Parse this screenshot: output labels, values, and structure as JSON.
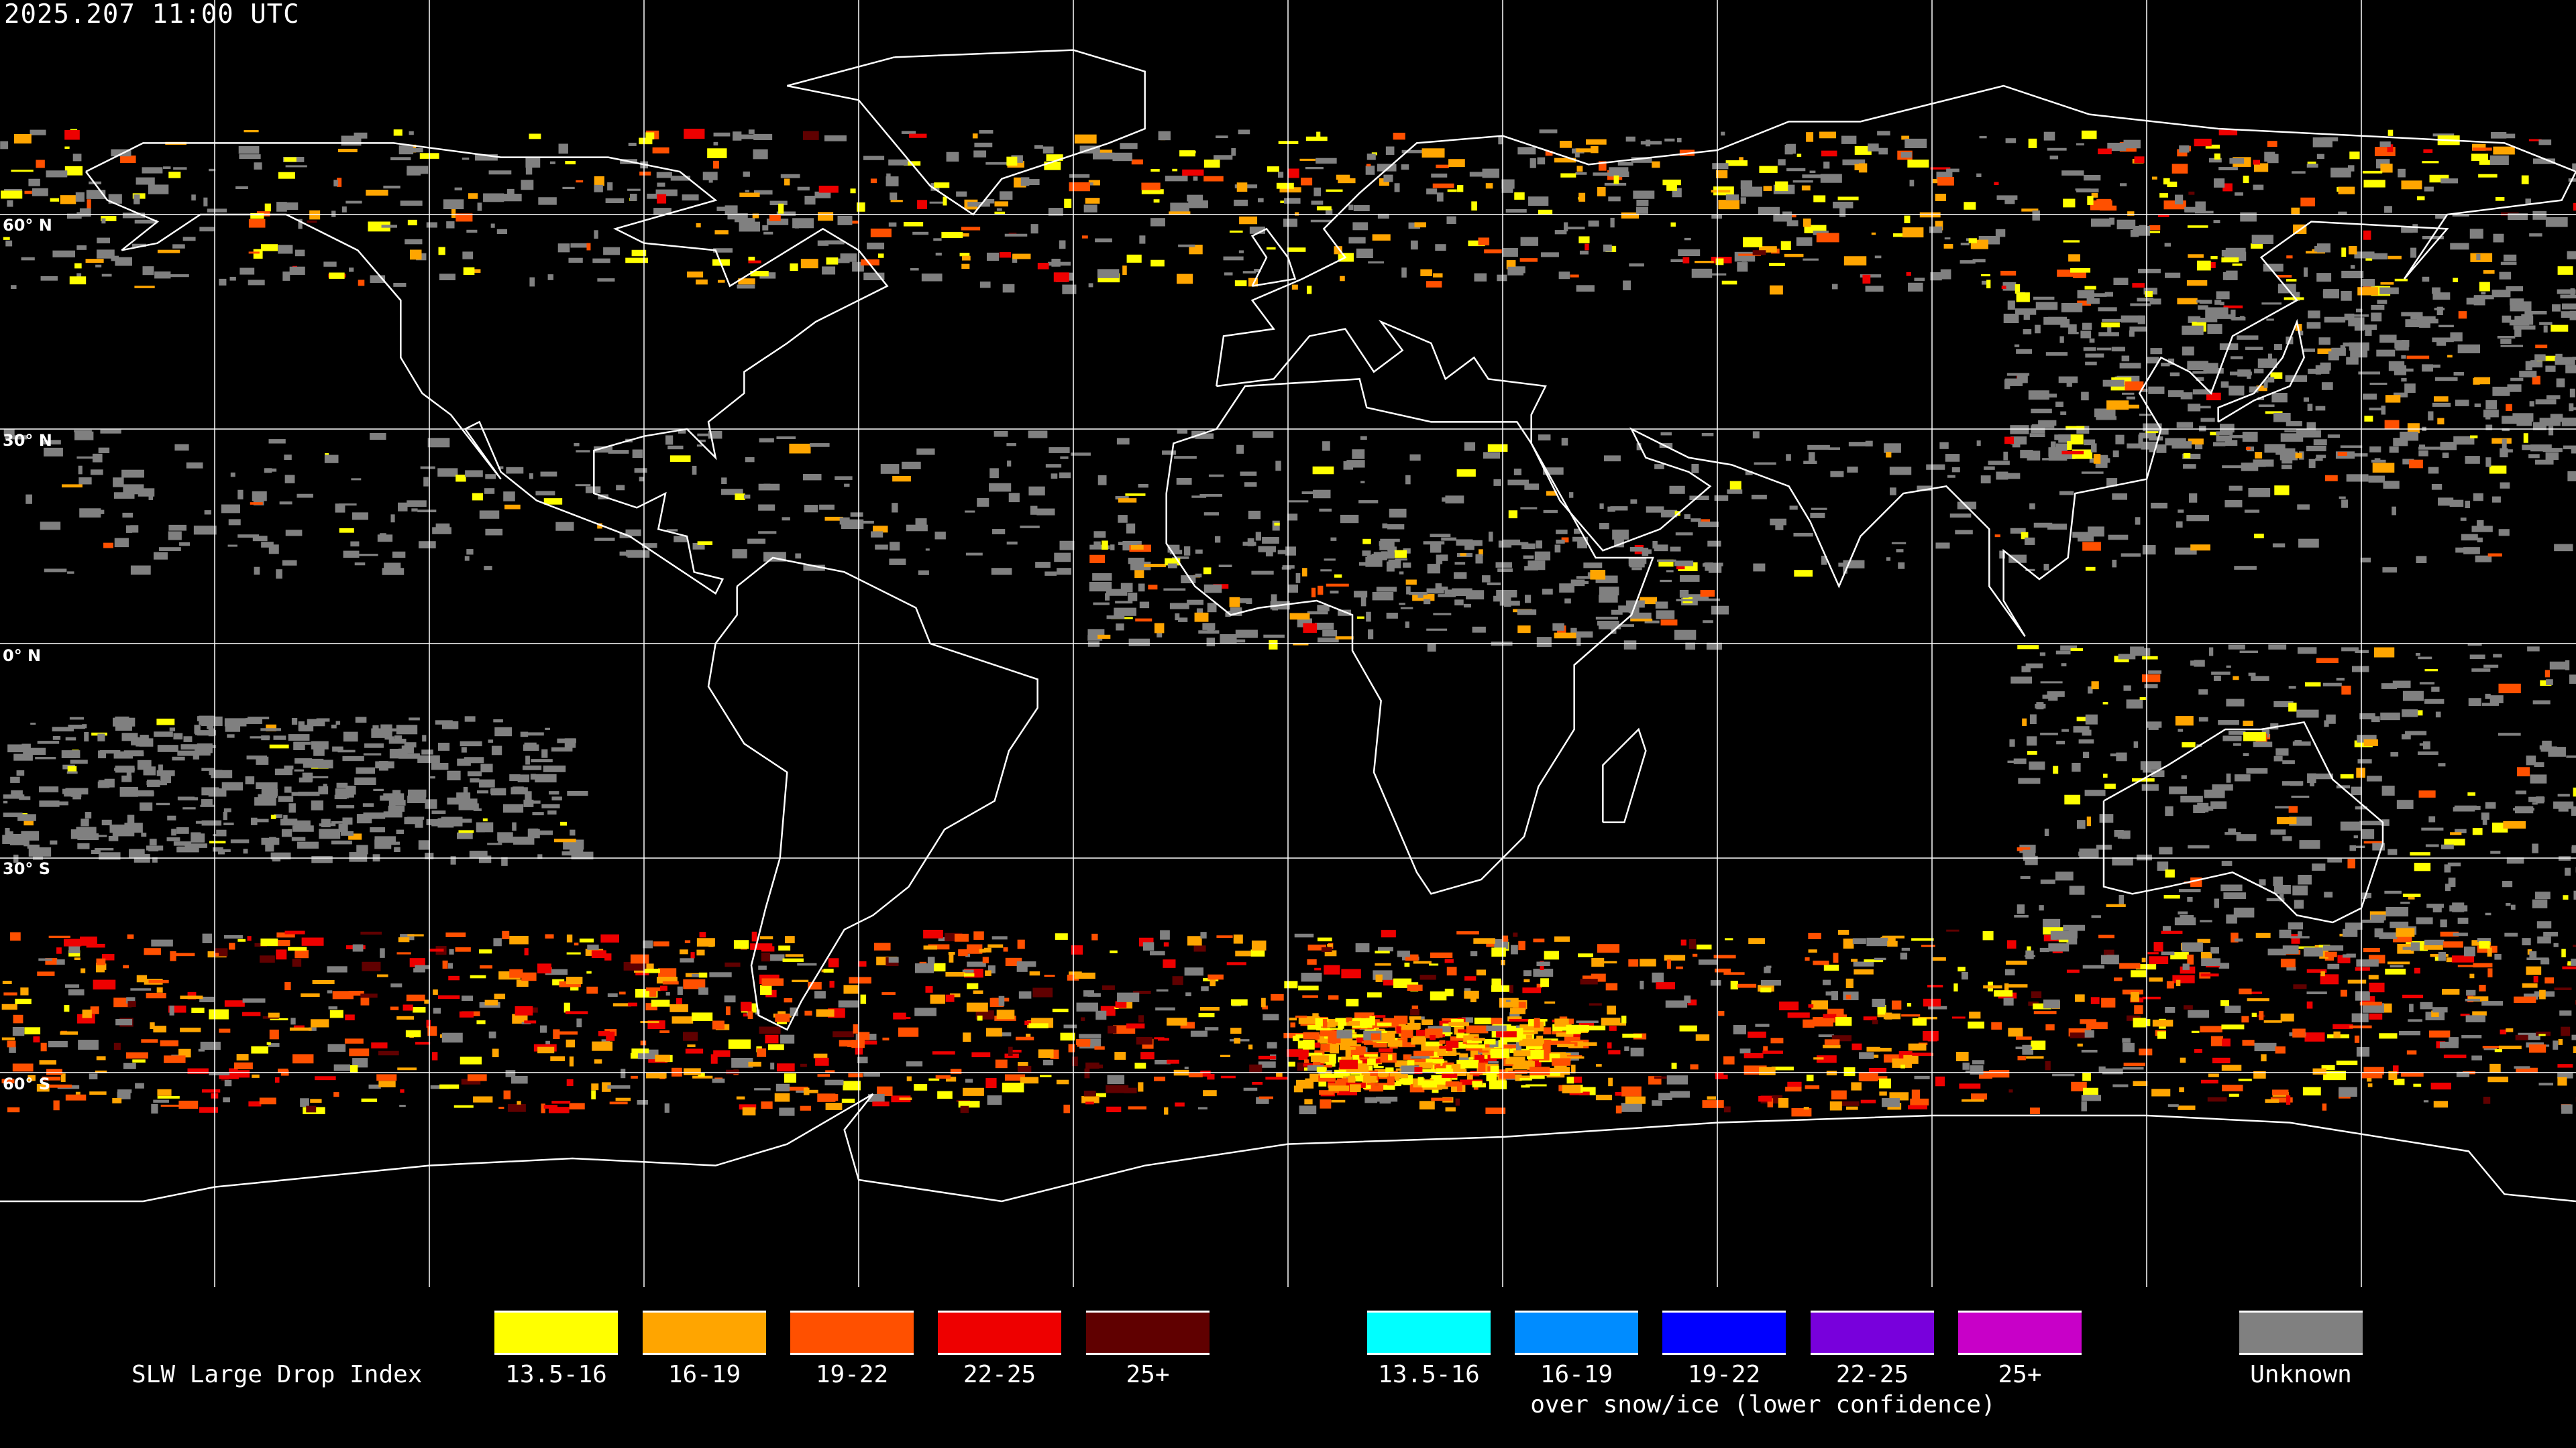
{
  "header": {
    "timestamp": "2025.207 11:00 UTC"
  },
  "map": {
    "lat_labels": [
      "60° N",
      "30° N",
      "0° N",
      "30° S",
      "60° S"
    ],
    "projection": "equirectangular",
    "grid_spacing_degrees": 30
  },
  "legend": {
    "title": "SLW Large Drop Index",
    "primary": [
      {
        "label": "13.5-16",
        "color": "#ffff00"
      },
      {
        "label": "16-19",
        "color": "#ffa500"
      },
      {
        "label": "19-22",
        "color": "#ff5000"
      },
      {
        "label": "22-25",
        "color": "#ee0000"
      },
      {
        "label": "25+",
        "color": "#600000"
      }
    ],
    "snow_ice": [
      {
        "label": "13.5-16",
        "color": "#00ffff"
      },
      {
        "label": "16-19",
        "color": "#008cff"
      },
      {
        "label": "19-22",
        "color": "#0000ff"
      },
      {
        "label": "22-25",
        "color": "#7800dc"
      },
      {
        "label": "25+",
        "color": "#c800c8"
      }
    ],
    "snow_ice_caption": "over snow/ice (lower confidence)",
    "unknown": {
      "label": "Unknown",
      "color": "#808080"
    }
  }
}
